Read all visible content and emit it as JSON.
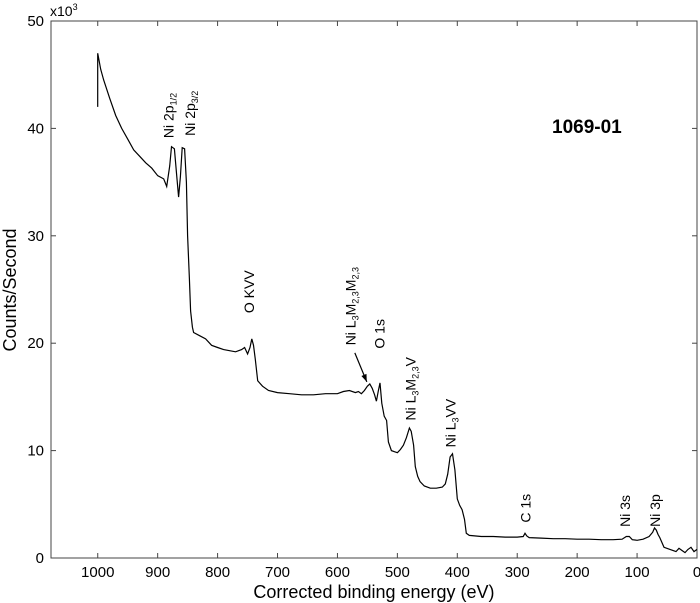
{
  "chart_data": {
    "type": "line",
    "title": "1069-01",
    "xlabel": "Corrected binding energy (eV)",
    "ylabel": "Counts/Second",
    "y_multiplier_label": "x10",
    "y_multiplier_exp": "3",
    "xlim": [
      1078,
      0
    ],
    "x_reversed": true,
    "ylim": [
      0,
      50
    ],
    "xticks": [
      1000,
      900,
      800,
      700,
      600,
      500,
      400,
      300,
      200,
      100,
      0
    ],
    "yticks": [
      0,
      10,
      20,
      30,
      40,
      50
    ],
    "grid": false,
    "line_color": "#000000",
    "series": [
      {
        "x": [
          1000,
          1000,
          995,
          990,
          980,
          970,
          960,
          950,
          940,
          930,
          920,
          910,
          900,
          890,
          885,
          880,
          877,
          872,
          868,
          865,
          862,
          859,
          855,
          852,
          850,
          847,
          845,
          842,
          840,
          830,
          820,
          810,
          800,
          790,
          780,
          770,
          760,
          755,
          750,
          746,
          743,
          740,
          737,
          733,
          725,
          715,
          700,
          680,
          660,
          640,
          620,
          600,
          590,
          580,
          570,
          565,
          560,
          555,
          550,
          546,
          542,
          538,
          535,
          532,
          529,
          526,
          522,
          518,
          515,
          510,
          505,
          500,
          495,
          490,
          485,
          480,
          477,
          473,
          470,
          466,
          462,
          455,
          445,
          435,
          425,
          420,
          416,
          412,
          408,
          404,
          400,
          396,
          392,
          388,
          385,
          380,
          360,
          340,
          320,
          300,
          290,
          287,
          284,
          280,
          260,
          240,
          220,
          200,
          180,
          160,
          140,
          125,
          118,
          113,
          108,
          100,
          90,
          80,
          74,
          71,
          68,
          65,
          62,
          55,
          45,
          35,
          30,
          25,
          20,
          15,
          10,
          5,
          0
        ],
        "y": [
          42,
          47,
          45.5,
          44.5,
          42.8,
          41.2,
          40,
          39,
          38,
          37.4,
          36.8,
          36.3,
          35.6,
          35.3,
          34.6,
          36.5,
          38.3,
          38.1,
          35.5,
          33.6,
          35.5,
          38.2,
          38.1,
          35,
          30,
          26,
          23,
          21.5,
          21,
          20.7,
          20.4,
          19.8,
          19.6,
          19.4,
          19.3,
          19.2,
          19.4,
          19.6,
          19.0,
          19.6,
          20.4,
          19.8,
          18.5,
          16.5,
          16.0,
          15.6,
          15.4,
          15.3,
          15.2,
          15.2,
          15.3,
          15.3,
          15.5,
          15.6,
          15.4,
          15.5,
          15.3,
          15.6,
          16.0,
          16.2,
          15.8,
          15.2,
          14.6,
          15.5,
          16.3,
          14.4,
          13.2,
          12.8,
          10.8,
          10.0,
          9.9,
          9.8,
          10.1,
          10.5,
          11.2,
          12.1,
          11.8,
          10.5,
          8.5,
          7.6,
          7.1,
          6.7,
          6.5,
          6.5,
          6.6,
          6.9,
          7.8,
          9.4,
          9.7,
          8.2,
          5.5,
          4.9,
          4.5,
          3.6,
          2.3,
          2.1,
          2.0,
          2.0,
          1.95,
          1.95,
          2.0,
          2.3,
          2.05,
          1.9,
          1.85,
          1.8,
          1.8,
          1.75,
          1.75,
          1.7,
          1.7,
          1.75,
          2.0,
          2.0,
          1.7,
          1.65,
          1.75,
          2.0,
          2.4,
          2.8,
          2.6,
          2.2,
          1.9,
          1.0,
          0.8,
          0.6,
          0.9,
          0.7,
          0.5,
          0.8,
          1.0,
          0.6,
          0.8
        ]
      }
    ],
    "annotations": [
      {
        "x": 882,
        "y": 39.1,
        "parts": [
          {
            "t": "Ni 2p"
          },
          {
            "t": "1/2",
            "sub": true
          }
        ]
      },
      {
        "x": 846,
        "y": 39.3,
        "parts": [
          {
            "t": "Ni 2p"
          },
          {
            "t": "3/2",
            "sub": true
          }
        ]
      },
      {
        "x": 748,
        "y": 22.8,
        "parts": [
          {
            "t": "O KVV"
          }
        ]
      },
      {
        "x": 578,
        "y": 19.8,
        "parts": [
          {
            "t": "Ni L"
          },
          {
            "t": "3",
            "sub": true
          },
          {
            "t": "M"
          },
          {
            "t": "2,3",
            "sub": true
          },
          {
            "t": "M"
          },
          {
            "t": "2,3",
            "sub": true
          }
        ]
      },
      {
        "x": 530,
        "y": 19.5,
        "parts": [
          {
            "t": "O 1s"
          }
        ]
      },
      {
        "x": 478,
        "y": 12.8,
        "parts": [
          {
            "t": "Ni L"
          },
          {
            "t": "3",
            "sub": true
          },
          {
            "t": "M"
          },
          {
            "t": "2,3",
            "sub": true
          },
          {
            "t": "V"
          }
        ]
      },
      {
        "x": 411,
        "y": 10.3,
        "parts": [
          {
            "t": "Ni L"
          },
          {
            "t": "3",
            "sub": true
          },
          {
            "t": "VV"
          }
        ]
      },
      {
        "x": 286,
        "y": 3.3,
        "parts": [
          {
            "t": "C 1s"
          }
        ]
      },
      {
        "x": 120,
        "y": 2.9,
        "parts": [
          {
            "t": "Ni 3s"
          }
        ]
      },
      {
        "x": 70,
        "y": 2.9,
        "parts": [
          {
            "t": "Ni 3p"
          }
        ]
      }
    ],
    "arrow": {
      "from": [
        571,
        19.1
      ],
      "to": [
        551,
        16.4
      ]
    }
  }
}
